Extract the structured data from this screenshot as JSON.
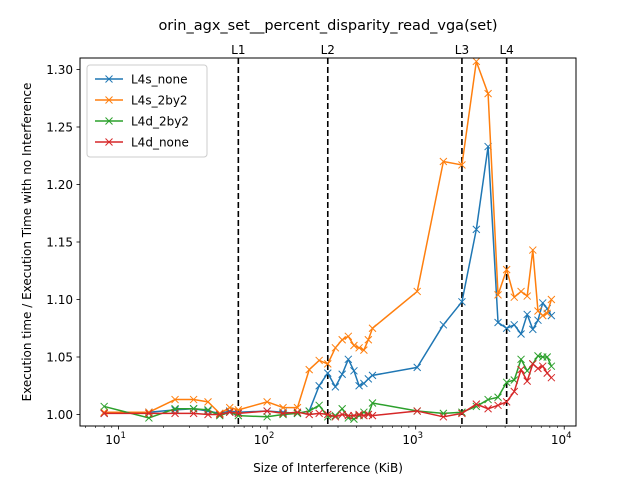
{
  "chart_data": {
    "type": "line",
    "title": "orin_agx_set__percent_disparity_read_vga(set)",
    "xlabel": "Size of Interference (KiB)",
    "ylabel": "Execution time / Execution Time with no Interference",
    "xscale": "log",
    "xlim": [
      5.5,
      12000
    ],
    "ylim": [
      0.99,
      1.31
    ],
    "yticks": [
      1.0,
      1.05,
      1.1,
      1.15,
      1.2,
      1.25,
      1.3
    ],
    "ytick_labels": [
      "1.00",
      "1.05",
      "1.10",
      "1.15",
      "1.20",
      "1.25",
      "1.30"
    ],
    "xticks": [
      {
        "value": 10,
        "base": "10",
        "exp": "1"
      },
      {
        "value": 100,
        "base": "10",
        "exp": "2"
      },
      {
        "value": 1000,
        "base": "10",
        "exp": "3"
      },
      {
        "value": 10000,
        "base": "10",
        "exp": "4"
      }
    ],
    "vlines": [
      {
        "x": 64,
        "label": "L1"
      },
      {
        "x": 256,
        "label": "L2"
      },
      {
        "x": 2048,
        "label": "L3"
      },
      {
        "x": 4096,
        "label": "L4"
      }
    ],
    "legend_position": "top-left",
    "grid": false,
    "series": [
      {
        "name": "L4s_none",
        "color": "#1f77b4",
        "x": [
          8,
          16,
          24,
          32,
          40,
          48,
          56,
          64,
          100,
          128,
          160,
          192,
          224,
          256,
          288,
          320,
          352,
          384,
          416,
          448,
          480,
          512,
          1024,
          1536,
          2048,
          2560,
          3072,
          3584,
          4096,
          4608,
          5120,
          5632,
          6144,
          6656,
          7168,
          7680,
          8192
        ],
        "y": [
          1.001,
          1.002,
          1.004,
          1.005,
          1.003,
          1.001,
          1.003,
          1.002,
          1.003,
          1.002,
          1.001,
          1.003,
          1.025,
          1.036,
          1.024,
          1.035,
          1.048,
          1.038,
          1.025,
          1.027,
          1.031,
          1.034,
          1.041,
          1.078,
          1.098,
          1.161,
          1.233,
          1.08,
          1.075,
          1.078,
          1.07,
          1.087,
          1.074,
          1.082,
          1.097,
          1.092,
          1.086
        ]
      },
      {
        "name": "L4s_2by2",
        "color": "#ff7f0e",
        "x": [
          8,
          16,
          24,
          32,
          40,
          48,
          56,
          64,
          100,
          128,
          160,
          192,
          224,
          256,
          288,
          320,
          352,
          384,
          416,
          448,
          480,
          512,
          1024,
          1536,
          2048,
          2560,
          3072,
          3584,
          4096,
          4608,
          5120,
          5632,
          6144,
          6656,
          7168,
          7680,
          8192
        ],
        "y": [
          1.002,
          1.002,
          1.013,
          1.013,
          1.011,
          1.001,
          1.006,
          1.004,
          1.011,
          1.006,
          1.006,
          1.039,
          1.047,
          1.044,
          1.058,
          1.065,
          1.068,
          1.06,
          1.058,
          1.056,
          1.065,
          1.075,
          1.107,
          1.22,
          1.217,
          1.307,
          1.279,
          1.104,
          1.126,
          1.102,
          1.107,
          1.103,
          1.143,
          1.09,
          1.086,
          1.088,
          1.1
        ]
      },
      {
        "name": "L4d_2by2",
        "color": "#2ca02c",
        "x": [
          8,
          16,
          24,
          32,
          40,
          48,
          56,
          64,
          100,
          128,
          160,
          192,
          224,
          256,
          288,
          320,
          352,
          384,
          416,
          448,
          480,
          512,
          1024,
          1536,
          2048,
          2560,
          3072,
          3584,
          4096,
          4608,
          5120,
          5632,
          6144,
          6656,
          7168,
          7680,
          8192
        ],
        "y": [
          1.007,
          0.997,
          1.005,
          1.005,
          1.004,
          0.999,
          1.002,
          0.999,
          0.998,
          1.0,
          1.001,
          1.003,
          1.008,
          0.998,
          0.999,
          1.005,
          0.997,
          0.996,
          0.999,
          1.002,
          1.0,
          1.01,
          1.003,
          1.001,
          1.002,
          1.007,
          1.013,
          1.015,
          1.028,
          1.03,
          1.048,
          1.038,
          1.044,
          1.051,
          1.05,
          1.05,
          1.042
        ]
      },
      {
        "name": "L4d_none",
        "color": "#d62728",
        "x": [
          8,
          16,
          24,
          32,
          40,
          48,
          56,
          64,
          100,
          128,
          160,
          192,
          224,
          256,
          288,
          320,
          352,
          384,
          416,
          448,
          480,
          512,
          1024,
          1536,
          2048,
          2560,
          3072,
          3584,
          4096,
          4608,
          5120,
          5632,
          6144,
          6656,
          7168,
          7680,
          8192
        ],
        "y": [
          1.001,
          1.001,
          1.001,
          1.001,
          1.0,
          1.0,
          1.002,
          1.001,
          1.003,
          1.001,
          1.002,
          1.0,
          1.001,
          1.0,
          0.998,
          1.0,
          0.999,
          0.999,
          1.0,
          0.999,
          1.0,
          0.999,
          1.003,
          0.998,
          1.001,
          1.009,
          1.005,
          1.008,
          1.011,
          1.02,
          1.039,
          1.029,
          1.044,
          1.04,
          1.042,
          1.036,
          1.032
        ]
      }
    ]
  }
}
